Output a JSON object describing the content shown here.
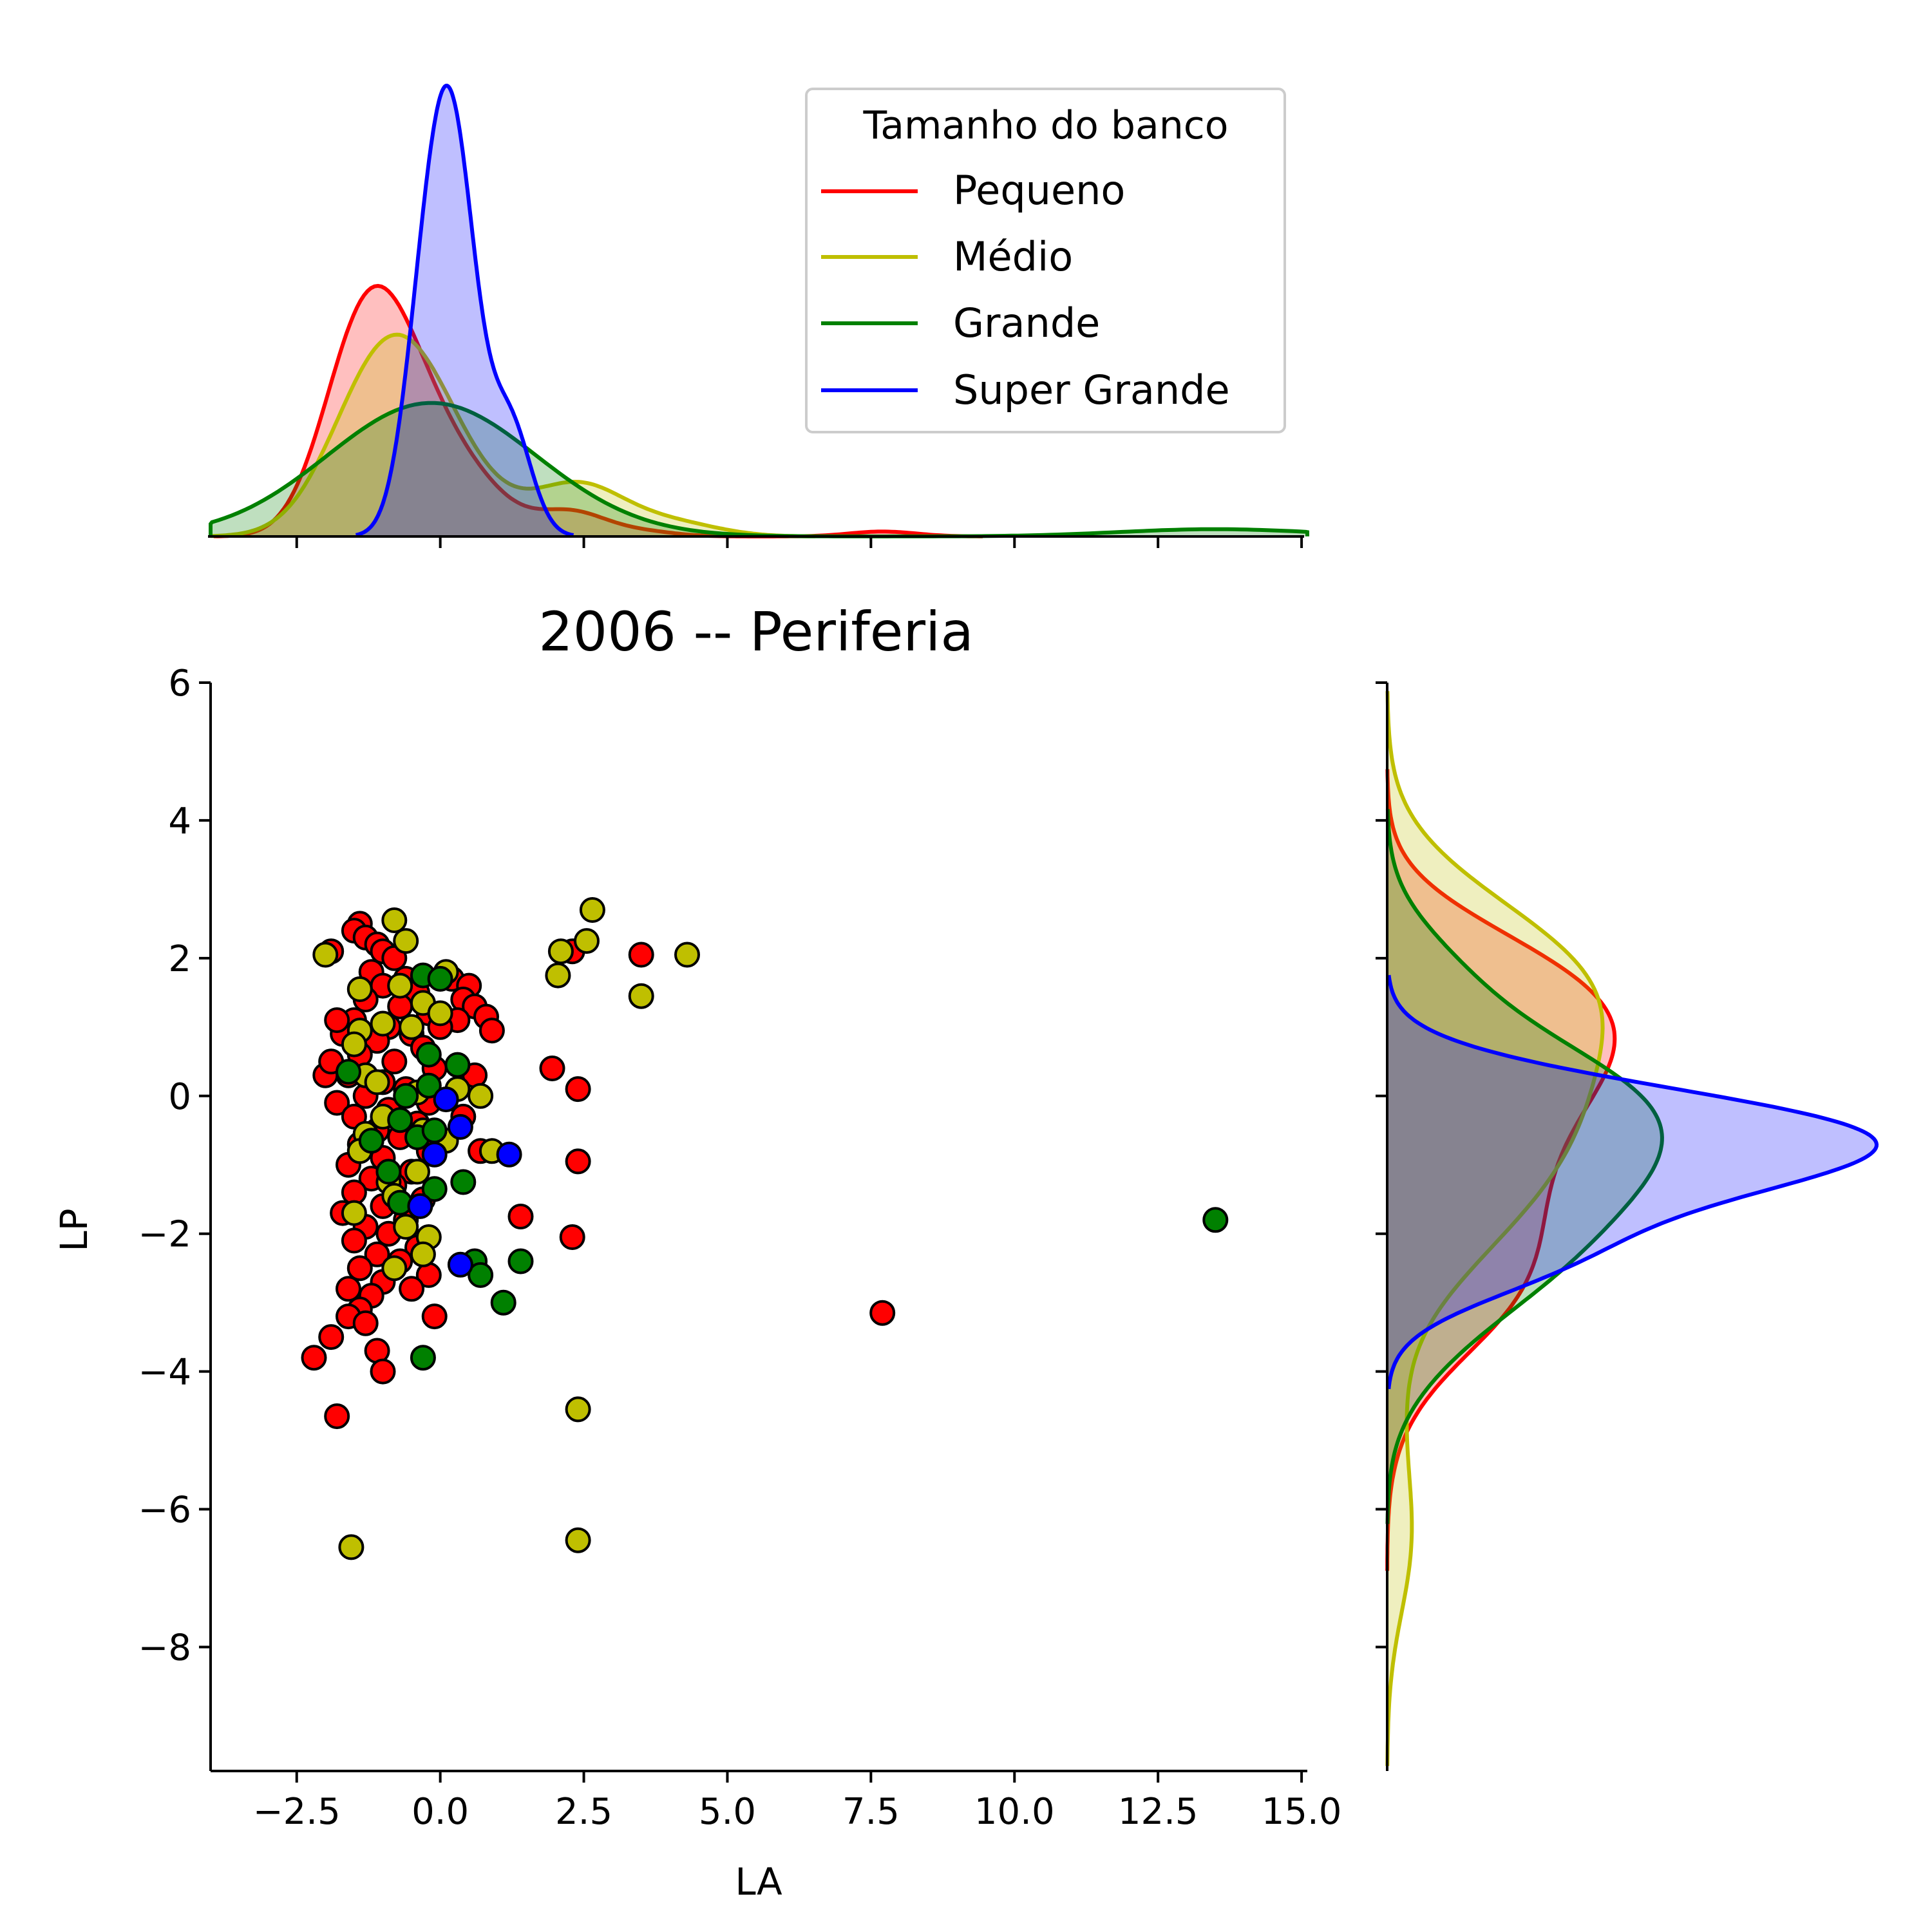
{
  "chart_data": {
    "type": "scatter",
    "title": "2006 -- Periferia",
    "xlabel": "LA",
    "ylabel": "LP",
    "xlim": [
      -4.0,
      15.1
    ],
    "ylim": [
      -9.8,
      6.0
    ],
    "xticks": [
      -2.5,
      0.0,
      2.5,
      5.0,
      7.5,
      10.0,
      12.5,
      15.0
    ],
    "xtick_labels": [
      "−2.5",
      "0.0",
      "2.5",
      "5.0",
      "7.5",
      "10.0",
      "12.5",
      "15.0"
    ],
    "yticks": [
      6,
      4,
      2,
      0,
      -2,
      -4,
      -6,
      -8
    ],
    "ytick_labels": [
      "6",
      "4",
      "2",
      "0",
      "−2",
      "−4",
      "−6",
      "−8"
    ],
    "grid": false,
    "legend": {
      "title": "Tamanho do banco",
      "placement": "top-right of top marginal",
      "entries": [
        "Pequeno",
        "Médio",
        "Grande",
        "Super Grande"
      ]
    },
    "marginals": "kde (top: LA density, right: LP density), filled with transparency",
    "series": [
      {
        "name": "Pequeno",
        "color": "#ff0000",
        "points": [
          [
            -1.4,
            2.5
          ],
          [
            -1.5,
            2.4
          ],
          [
            -1.3,
            2.3
          ],
          [
            -1.1,
            2.2
          ],
          [
            -1.0,
            2.1
          ],
          [
            -0.8,
            2.0
          ],
          [
            -1.2,
            1.8
          ],
          [
            -0.6,
            1.7
          ],
          [
            -1.0,
            1.6
          ],
          [
            -0.4,
            1.5
          ],
          [
            -1.3,
            1.4
          ],
          [
            -0.7,
            1.3
          ],
          [
            -0.2,
            1.2
          ],
          [
            -1.5,
            1.1
          ],
          [
            -0.9,
            1.0
          ],
          [
            -0.5,
            0.9
          ],
          [
            -1.7,
            0.9
          ],
          [
            -1.1,
            0.8
          ],
          [
            -0.3,
            0.7
          ],
          [
            -1.4,
            0.6
          ],
          [
            -0.8,
            0.5
          ],
          [
            -0.1,
            0.4
          ],
          [
            -1.6,
            0.3
          ],
          [
            -1.0,
            0.2
          ],
          [
            -0.6,
            0.1
          ],
          [
            -1.3,
            0.0
          ],
          [
            -0.2,
            -0.1
          ],
          [
            -1.8,
            -0.1
          ],
          [
            -0.9,
            -0.2
          ],
          [
            -1.5,
            -0.3
          ],
          [
            -0.4,
            -0.4
          ],
          [
            -1.1,
            -0.5
          ],
          [
            -0.7,
            -0.6
          ],
          [
            -1.4,
            -0.7
          ],
          [
            -0.2,
            -0.8
          ],
          [
            -1.0,
            -0.9
          ],
          [
            -1.6,
            -1.0
          ],
          [
            -0.5,
            -1.1
          ],
          [
            -1.2,
            -1.2
          ],
          [
            -0.8,
            -1.3
          ],
          [
            -1.5,
            -1.4
          ],
          [
            -0.3,
            -1.5
          ],
          [
            -1.0,
            -1.6
          ],
          [
            -1.7,
            -1.7
          ],
          [
            -0.6,
            -1.8
          ],
          [
            -1.3,
            -1.9
          ],
          [
            -0.9,
            -2.0
          ],
          [
            -1.5,
            -2.1
          ],
          [
            -0.4,
            -2.2
          ],
          [
            -1.1,
            -2.3
          ],
          [
            -0.7,
            -2.4
          ],
          [
            -1.4,
            -2.5
          ],
          [
            -0.2,
            -2.6
          ],
          [
            -1.0,
            -2.7
          ],
          [
            -1.6,
            -2.8
          ],
          [
            -0.5,
            -2.8
          ],
          [
            -1.2,
            -2.9
          ],
          [
            -1.4,
            -3.1
          ],
          [
            -1.6,
            -3.2
          ],
          [
            -1.3,
            -3.3
          ],
          [
            -1.9,
            -3.5
          ],
          [
            -2.2,
            -3.8
          ],
          [
            -1.1,
            -3.7
          ],
          [
            -1.0,
            -4.0
          ],
          [
            -1.8,
            -4.65
          ],
          [
            -0.1,
            -3.2
          ],
          [
            0.2,
            1.7
          ],
          [
            0.5,
            1.6
          ],
          [
            0.4,
            1.4
          ],
          [
            0.6,
            1.3
          ],
          [
            0.3,
            1.1
          ],
          [
            0.8,
            1.15
          ],
          [
            0.9,
            0.95
          ],
          [
            0.0,
            1.0
          ],
          [
            1.95,
            0.4
          ],
          [
            2.4,
            0.1
          ],
          [
            2.4,
            -0.95
          ],
          [
            1.4,
            -1.75
          ],
          [
            2.3,
            -2.05
          ],
          [
            3.5,
            2.05
          ],
          [
            2.3,
            2.1
          ],
          [
            7.7,
            -3.15
          ],
          [
            0.7,
            -0.8
          ],
          [
            0.4,
            -0.3
          ],
          [
            0.6,
            0.3
          ],
          [
            -1.9,
            2.1
          ],
          [
            -1.8,
            1.1
          ],
          [
            -2.0,
            0.3
          ],
          [
            -1.9,
            0.5
          ]
        ]
      },
      {
        "name": "Médio",
        "color": "#bfbf00",
        "points": [
          [
            -2.0,
            2.05
          ],
          [
            -0.8,
            2.55
          ],
          [
            -0.6,
            2.25
          ],
          [
            -1.4,
            1.55
          ],
          [
            -0.7,
            1.6
          ],
          [
            0.1,
            1.8
          ],
          [
            -0.3,
            1.35
          ],
          [
            0.0,
            1.2
          ],
          [
            -1.0,
            1.05
          ],
          [
            -1.4,
            0.95
          ],
          [
            -0.5,
            1.0
          ],
          [
            -1.5,
            0.75
          ],
          [
            -1.3,
            0.3
          ],
          [
            -1.1,
            0.2
          ],
          [
            -0.4,
            0.05
          ],
          [
            0.3,
            0.1
          ],
          [
            0.7,
            0.0
          ],
          [
            -1.0,
            -0.3
          ],
          [
            -1.3,
            -0.55
          ],
          [
            -0.3,
            -0.5
          ],
          [
            0.1,
            -0.65
          ],
          [
            -1.4,
            -0.8
          ],
          [
            0.9,
            -0.8
          ],
          [
            -0.4,
            -1.1
          ],
          [
            -0.9,
            -1.25
          ],
          [
            -0.8,
            -1.45
          ],
          [
            -1.5,
            -1.7
          ],
          [
            -0.6,
            -1.9
          ],
          [
            -0.2,
            -2.05
          ],
          [
            -0.8,
            -2.5
          ],
          [
            -0.3,
            -2.3
          ],
          [
            2.05,
            1.75
          ],
          [
            2.1,
            2.1
          ],
          [
            2.55,
            2.25
          ],
          [
            2.65,
            2.7
          ],
          [
            3.5,
            1.45
          ],
          [
            4.3,
            2.05
          ],
          [
            2.4,
            -4.55
          ],
          [
            -1.55,
            -6.55
          ],
          [
            2.4,
            -6.45
          ]
        ]
      },
      {
        "name": "Grande",
        "color": "#008000",
        "points": [
          [
            -1.6,
            0.35
          ],
          [
            -0.3,
            1.75
          ],
          [
            0.0,
            1.7
          ],
          [
            -0.2,
            0.6
          ],
          [
            0.3,
            0.45
          ],
          [
            -0.2,
            0.15
          ],
          [
            -0.6,
            0.0
          ],
          [
            -0.7,
            -0.35
          ],
          [
            -0.4,
            -0.6
          ],
          [
            -1.2,
            -0.65
          ],
          [
            -0.1,
            -0.5
          ],
          [
            -0.9,
            -1.1
          ],
          [
            -0.7,
            -1.55
          ],
          [
            -0.1,
            -1.35
          ],
          [
            0.4,
            -1.25
          ],
          [
            0.6,
            -2.4
          ],
          [
            0.7,
            -2.6
          ],
          [
            1.4,
            -2.4
          ],
          [
            1.1,
            -3.0
          ],
          [
            -0.3,
            -3.8
          ],
          [
            13.5,
            -1.8
          ]
        ]
      },
      {
        "name": "Super Grande",
        "color": "#0000ff",
        "points": [
          [
            0.1,
            -0.05
          ],
          [
            0.35,
            -0.45
          ],
          [
            -0.1,
            -0.85
          ],
          [
            1.2,
            -0.85
          ],
          [
            -0.35,
            -1.6
          ],
          [
            0.35,
            -2.45
          ]
        ]
      }
    ]
  }
}
